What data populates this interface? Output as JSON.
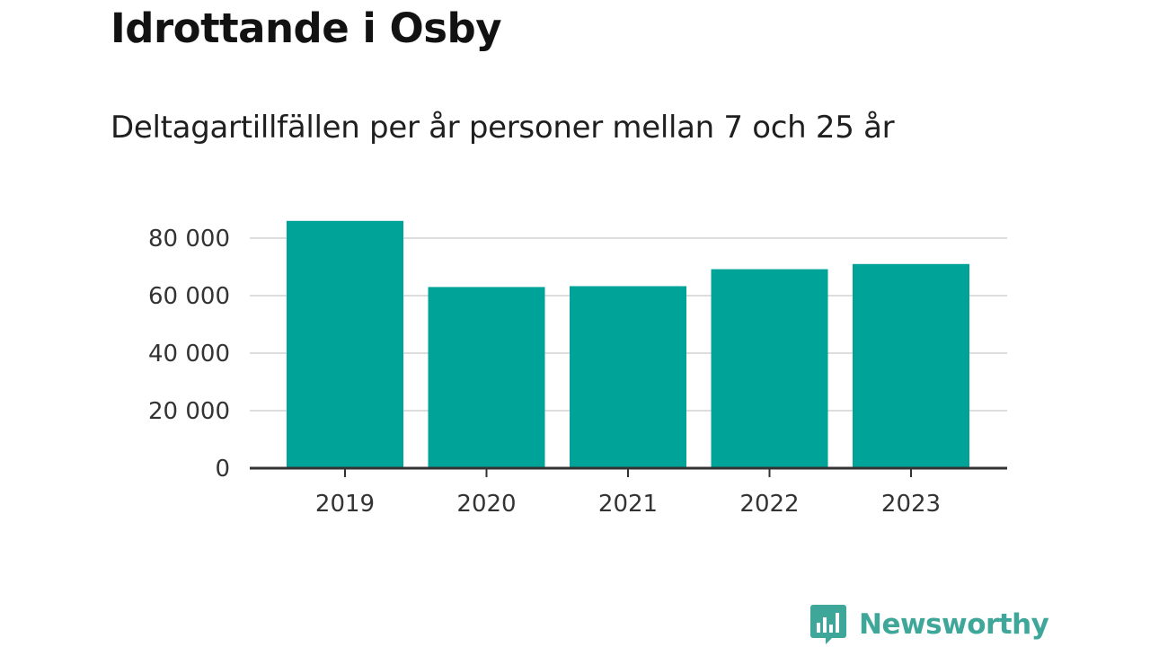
{
  "title": "Idrottande i Osby",
  "subtitle": "Deltagartillfällen per år personer mellan 7 och 25 år",
  "brand": {
    "name": "Newsworthy",
    "color": "#3fa79a",
    "icon": "bar-chart-speech-bubble-icon"
  },
  "chart_data": {
    "type": "bar",
    "categories": [
      "2019",
      "2020",
      "2021",
      "2022",
      "2023"
    ],
    "values": [
      86000,
      63000,
      63300,
      69200,
      71000
    ],
    "title": "Idrottande i Osby",
    "subtitle": "Deltagartillfällen per år personer mellan 7 och 25 år",
    "xlabel": "",
    "ylabel": "",
    "ylim": [
      0,
      80000
    ],
    "yticks": [
      0,
      20000,
      40000,
      60000,
      80000
    ],
    "ytick_labels": [
      "0",
      "20 000",
      "40 000",
      "60 000",
      "80 000"
    ],
    "grid": true,
    "legend": "none",
    "bar_color": "#00a398",
    "grid_color": "#dddddd",
    "axis_color": "#333333"
  }
}
